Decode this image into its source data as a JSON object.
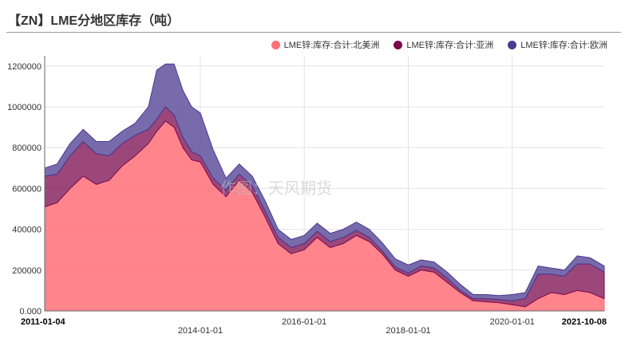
{
  "title": "【ZN】LME分地区库存（吨）",
  "watermark": "作图：天风期货",
  "colors": {
    "north_america": "#ff6f78",
    "asia": "#7a0a4e",
    "europe": "#4b3a90"
  },
  "chart_data": {
    "type": "area",
    "stacked": true,
    "x_ticks": [
      {
        "date": "2011-01-04",
        "label": "2011-01-04",
        "row": 1,
        "bold": true
      },
      {
        "date": "2014-01-01",
        "label": "2014-01-01",
        "row": 2,
        "bold": false
      },
      {
        "date": "2016-01-01",
        "label": "2016-01-01",
        "row": 1,
        "bold": false
      },
      {
        "date": "2018-01-01",
        "label": "2018-01-01",
        "row": 2,
        "bold": false
      },
      {
        "date": "2020-01-01",
        "label": "2020-01-01",
        "row": 1,
        "bold": false
      },
      {
        "date": "2021-10-08",
        "label": "2021-10-08",
        "row": 1,
        "bold": true
      }
    ],
    "y_ticks": [
      {
        "value": 0,
        "label": "0.000"
      },
      {
        "value": 200000,
        "label": "200000"
      },
      {
        "value": 400000,
        "label": "400000"
      },
      {
        "value": 600000,
        "label": "600000"
      },
      {
        "value": 800000,
        "label": "800000"
      },
      {
        "value": 1000000,
        "label": "1000000"
      },
      {
        "value": 1200000,
        "label": "1200000"
      }
    ],
    "ylim": [
      0,
      1250000
    ],
    "xlim": [
      "2011-01-04",
      "2021-10-08"
    ],
    "grid": true,
    "legend_position": "top-right",
    "series": [
      {
        "name": "LME锌:库存:合计:北美洲",
        "color_key": "north_america",
        "points": [
          [
            "2011-01-04",
            510000
          ],
          [
            "2011-04-01",
            530000
          ],
          [
            "2011-07-01",
            600000
          ],
          [
            "2011-10-01",
            660000
          ],
          [
            "2012-01-01",
            620000
          ],
          [
            "2012-04-01",
            640000
          ],
          [
            "2012-07-01",
            710000
          ],
          [
            "2012-10-01",
            760000
          ],
          [
            "2013-01-01",
            820000
          ],
          [
            "2013-03-01",
            880000
          ],
          [
            "2013-05-01",
            930000
          ],
          [
            "2013-07-01",
            900000
          ],
          [
            "2013-09-01",
            800000
          ],
          [
            "2013-11-01",
            740000
          ],
          [
            "2014-01-01",
            730000
          ],
          [
            "2014-04-01",
            620000
          ],
          [
            "2014-07-01",
            560000
          ],
          [
            "2014-10-01",
            640000
          ],
          [
            "2015-01-01",
            580000
          ],
          [
            "2015-04-01",
            460000
          ],
          [
            "2015-07-01",
            330000
          ],
          [
            "2015-10-01",
            280000
          ],
          [
            "2016-01-01",
            300000
          ],
          [
            "2016-04-01",
            360000
          ],
          [
            "2016-07-01",
            310000
          ],
          [
            "2016-10-01",
            330000
          ],
          [
            "2017-01-01",
            370000
          ],
          [
            "2017-04-01",
            340000
          ],
          [
            "2017-07-01",
            280000
          ],
          [
            "2017-10-01",
            200000
          ],
          [
            "2018-01-01",
            170000
          ],
          [
            "2018-04-01",
            200000
          ],
          [
            "2018-07-01",
            190000
          ],
          [
            "2018-10-01",
            140000
          ],
          [
            "2019-01-01",
            90000
          ],
          [
            "2019-04-01",
            50000
          ],
          [
            "2019-07-01",
            45000
          ],
          [
            "2019-10-01",
            40000
          ],
          [
            "2020-01-01",
            30000
          ],
          [
            "2020-04-01",
            20000
          ],
          [
            "2020-07-01",
            60000
          ],
          [
            "2020-10-01",
            90000
          ],
          [
            "2021-01-01",
            80000
          ],
          [
            "2021-04-01",
            100000
          ],
          [
            "2021-07-01",
            90000
          ],
          [
            "2021-10-08",
            60000
          ]
        ]
      },
      {
        "name": "LME锌:库存:合计:亚洲",
        "color_key": "asia",
        "points": [
          [
            "2011-01-04",
            150000
          ],
          [
            "2011-04-01",
            140000
          ],
          [
            "2011-07-01",
            160000
          ],
          [
            "2011-10-01",
            170000
          ],
          [
            "2012-01-01",
            150000
          ],
          [
            "2012-04-01",
            120000
          ],
          [
            "2012-07-01",
            110000
          ],
          [
            "2012-10-01",
            100000
          ],
          [
            "2013-01-01",
            70000
          ],
          [
            "2013-03-01",
            60000
          ],
          [
            "2013-05-01",
            70000
          ],
          [
            "2013-07-01",
            60000
          ],
          [
            "2013-09-01",
            50000
          ],
          [
            "2013-11-01",
            40000
          ],
          [
            "2014-01-01",
            30000
          ],
          [
            "2014-04-01",
            30000
          ],
          [
            "2014-07-01",
            30000
          ],
          [
            "2014-10-01",
            30000
          ],
          [
            "2015-01-01",
            30000
          ],
          [
            "2015-04-01",
            30000
          ],
          [
            "2015-07-01",
            30000
          ],
          [
            "2015-10-01",
            30000
          ],
          [
            "2016-01-01",
            30000
          ],
          [
            "2016-04-01",
            30000
          ],
          [
            "2016-07-01",
            30000
          ],
          [
            "2016-10-01",
            30000
          ],
          [
            "2017-01-01",
            25000
          ],
          [
            "2017-04-01",
            20000
          ],
          [
            "2017-07-01",
            15000
          ],
          [
            "2017-10-01",
            15000
          ],
          [
            "2018-01-01",
            15000
          ],
          [
            "2018-04-01",
            20000
          ],
          [
            "2018-07-01",
            20000
          ],
          [
            "2018-10-01",
            20000
          ],
          [
            "2019-01-01",
            10000
          ],
          [
            "2019-04-01",
            10000
          ],
          [
            "2019-07-01",
            15000
          ],
          [
            "2019-10-01",
            15000
          ],
          [
            "2020-01-01",
            20000
          ],
          [
            "2020-04-01",
            40000
          ],
          [
            "2020-07-01",
            120000
          ],
          [
            "2020-10-01",
            90000
          ],
          [
            "2021-01-01",
            90000
          ],
          [
            "2021-04-01",
            130000
          ],
          [
            "2021-07-01",
            140000
          ],
          [
            "2021-10-08",
            130000
          ]
        ]
      },
      {
        "name": "LME锌:库存:合计:欧洲",
        "color_key": "europe",
        "points": [
          [
            "2011-01-04",
            40000
          ],
          [
            "2011-04-01",
            50000
          ],
          [
            "2011-07-01",
            60000
          ],
          [
            "2011-10-01",
            60000
          ],
          [
            "2012-01-01",
            60000
          ],
          [
            "2012-04-01",
            70000
          ],
          [
            "2012-07-01",
            60000
          ],
          [
            "2012-10-01",
            60000
          ],
          [
            "2013-01-01",
            110000
          ],
          [
            "2013-03-01",
            240000
          ],
          [
            "2013-05-01",
            210000
          ],
          [
            "2013-07-01",
            250000
          ],
          [
            "2013-09-01",
            230000
          ],
          [
            "2013-11-01",
            220000
          ],
          [
            "2014-01-01",
            210000
          ],
          [
            "2014-04-01",
            140000
          ],
          [
            "2014-07-01",
            60000
          ],
          [
            "2014-10-01",
            50000
          ],
          [
            "2015-01-01",
            50000
          ],
          [
            "2015-04-01",
            50000
          ],
          [
            "2015-07-01",
            40000
          ],
          [
            "2015-10-01",
            40000
          ],
          [
            "2016-01-01",
            40000
          ],
          [
            "2016-04-01",
            40000
          ],
          [
            "2016-07-01",
            40000
          ],
          [
            "2016-10-01",
            40000
          ],
          [
            "2017-01-01",
            40000
          ],
          [
            "2017-04-01",
            40000
          ],
          [
            "2017-07-01",
            40000
          ],
          [
            "2017-10-01",
            40000
          ],
          [
            "2018-01-01",
            40000
          ],
          [
            "2018-04-01",
            30000
          ],
          [
            "2018-07-01",
            30000
          ],
          [
            "2018-10-01",
            30000
          ],
          [
            "2019-01-01",
            30000
          ],
          [
            "2019-04-01",
            20000
          ],
          [
            "2019-07-01",
            20000
          ],
          [
            "2019-10-01",
            20000
          ],
          [
            "2020-01-01",
            30000
          ],
          [
            "2020-04-01",
            30000
          ],
          [
            "2020-07-01",
            40000
          ],
          [
            "2020-10-01",
            30000
          ],
          [
            "2021-01-01",
            30000
          ],
          [
            "2021-04-01",
            40000
          ],
          [
            "2021-07-01",
            30000
          ],
          [
            "2021-10-08",
            30000
          ]
        ]
      }
    ]
  }
}
